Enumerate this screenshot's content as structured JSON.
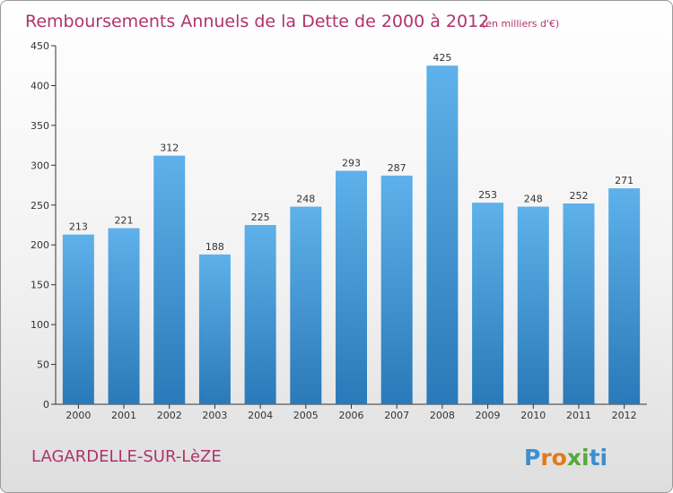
{
  "header": {
    "title": "Remboursements Annuels de la Dette de 2000 à 2012",
    "unit_note": "(en milliers d'€)"
  },
  "footer": {
    "commune": "LAGARDELLE-SUR-LèZE",
    "logo_text": "Proxiti",
    "logo_letters": [
      "P",
      "r",
      "o",
      "x",
      "i",
      "t",
      "i"
    ],
    "logo_colors": [
      "#3a8fd0",
      "#e07b1a",
      "#e07b1a",
      "#58a83a",
      "#58a83a",
      "#3a8fd0",
      "#3a8fd0"
    ]
  },
  "chart_data": {
    "type": "bar",
    "title": "Remboursements Annuels de la Dette de 2000 à 2012",
    "subtitle": "(en milliers d'€)",
    "xlabel": "",
    "ylabel": "",
    "categories": [
      "2000",
      "2001",
      "2002",
      "2003",
      "2004",
      "2005",
      "2006",
      "2007",
      "2008",
      "2009",
      "2010",
      "2011",
      "2012"
    ],
    "values": [
      213,
      221,
      312,
      188,
      225,
      248,
      293,
      287,
      425,
      253,
      248,
      252,
      271
    ],
    "value_labels": [
      "213",
      "221",
      "312",
      "188",
      "225",
      "248",
      "293",
      "287",
      "425",
      "253",
      "248",
      "252",
      "271"
    ],
    "ylim": [
      0,
      450
    ],
    "yticks": [
      0,
      50,
      100,
      150,
      200,
      250,
      300,
      350,
      400,
      450
    ],
    "ytick_labels": [
      "0",
      "50",
      "100",
      "150",
      "200",
      "250",
      "300",
      "350",
      "400",
      "450"
    ],
    "grid": false,
    "legend": "none",
    "colors": {
      "bar_top": "#5eb1ea",
      "bar_bottom": "#2a79b8",
      "axis": "#333333"
    }
  }
}
